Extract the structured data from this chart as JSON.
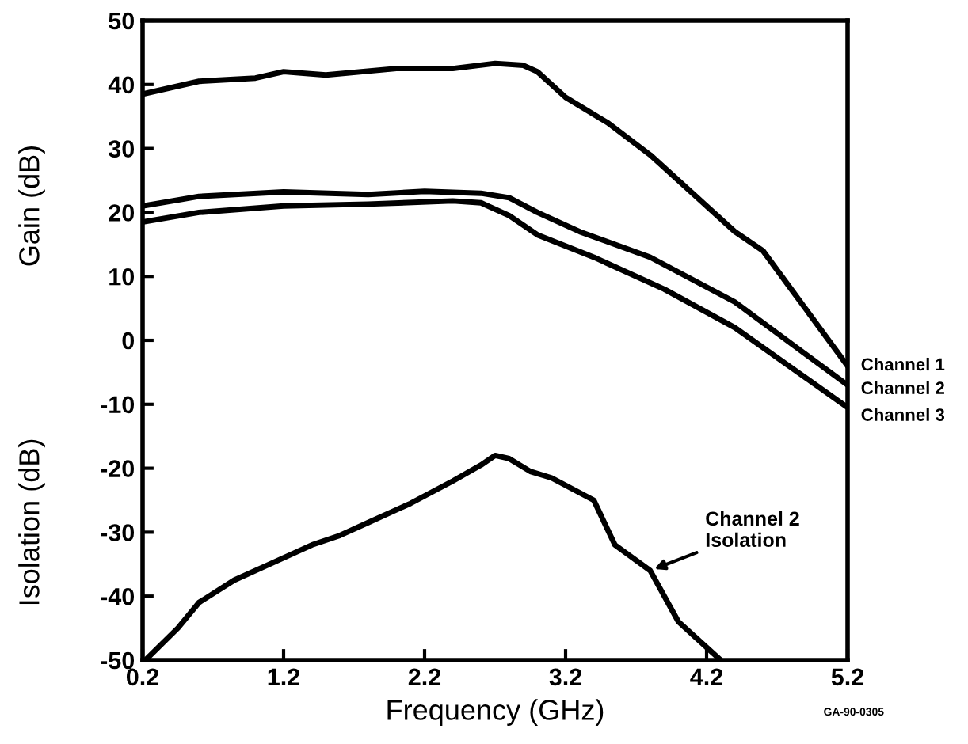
{
  "chart_data": {
    "type": "line",
    "xlabel": "Frequency (GHz)",
    "ylabel": "Gain (dB)",
    "annotations": [
      "Isolation (dB)",
      "GA-90-0305"
    ],
    "xlim": [
      0.2,
      5.2
    ],
    "xticks": [
      0.2,
      1.2,
      2.2,
      3.2,
      4.2,
      5.2
    ],
    "ylim": [
      -50,
      50
    ],
    "yticks": [
      -50,
      -40,
      -30,
      -20,
      -10,
      0,
      10,
      20,
      30,
      40,
      50
    ],
    "grid": false,
    "legend": false,
    "line_style": "solid",
    "series": [
      {
        "name": "Channel 1",
        "color": "#000000",
        "x": [
          0.2,
          0.6,
          1.0,
          1.2,
          1.5,
          2.0,
          2.4,
          2.7,
          2.9,
          3.0,
          3.2,
          3.5,
          3.8,
          4.1,
          4.4,
          4.6,
          4.8,
          5.2
        ],
        "values": [
          38.5,
          40.5,
          41,
          42,
          41.5,
          42.5,
          42.5,
          43.3,
          43,
          42,
          38,
          34,
          29,
          23,
          17,
          14,
          8,
          -4
        ]
      },
      {
        "name": "Channel 2",
        "color": "#000000",
        "x": [
          0.2,
          0.6,
          1.2,
          1.8,
          2.2,
          2.6,
          2.8,
          3.0,
          3.3,
          3.8,
          4.4,
          5.2
        ],
        "values": [
          21,
          22.5,
          23.2,
          22.8,
          23.3,
          23,
          22.3,
          20,
          17,
          13,
          6,
          -7
        ]
      },
      {
        "name": "Channel 3",
        "color": "#000000",
        "x": [
          0.2,
          0.6,
          1.2,
          1.8,
          2.4,
          2.6,
          2.8,
          3.0,
          3.4,
          3.9,
          4.4,
          5.2
        ],
        "values": [
          18.5,
          20,
          21,
          21.3,
          21.8,
          21.5,
          19.5,
          16.5,
          13,
          8,
          2,
          -10.5
        ]
      },
      {
        "name": "Channel 2\nIsolation",
        "color": "#000000",
        "x": [
          0.22,
          0.45,
          0.6,
          0.85,
          1.1,
          1.4,
          1.6,
          1.8,
          2.1,
          2.4,
          2.6,
          2.7,
          2.8,
          2.95,
          3.1,
          3.4,
          3.55,
          3.8,
          4.0,
          4.2,
          4.3
        ],
        "values": [
          -50,
          -45,
          -41,
          -37.5,
          -35,
          -32,
          -30.5,
          -28.5,
          -25.5,
          -22,
          -19.5,
          -18,
          -18.5,
          -20.5,
          -21.5,
          -25,
          -32,
          -36,
          -44,
          -48,
          -50
        ]
      }
    ]
  }
}
